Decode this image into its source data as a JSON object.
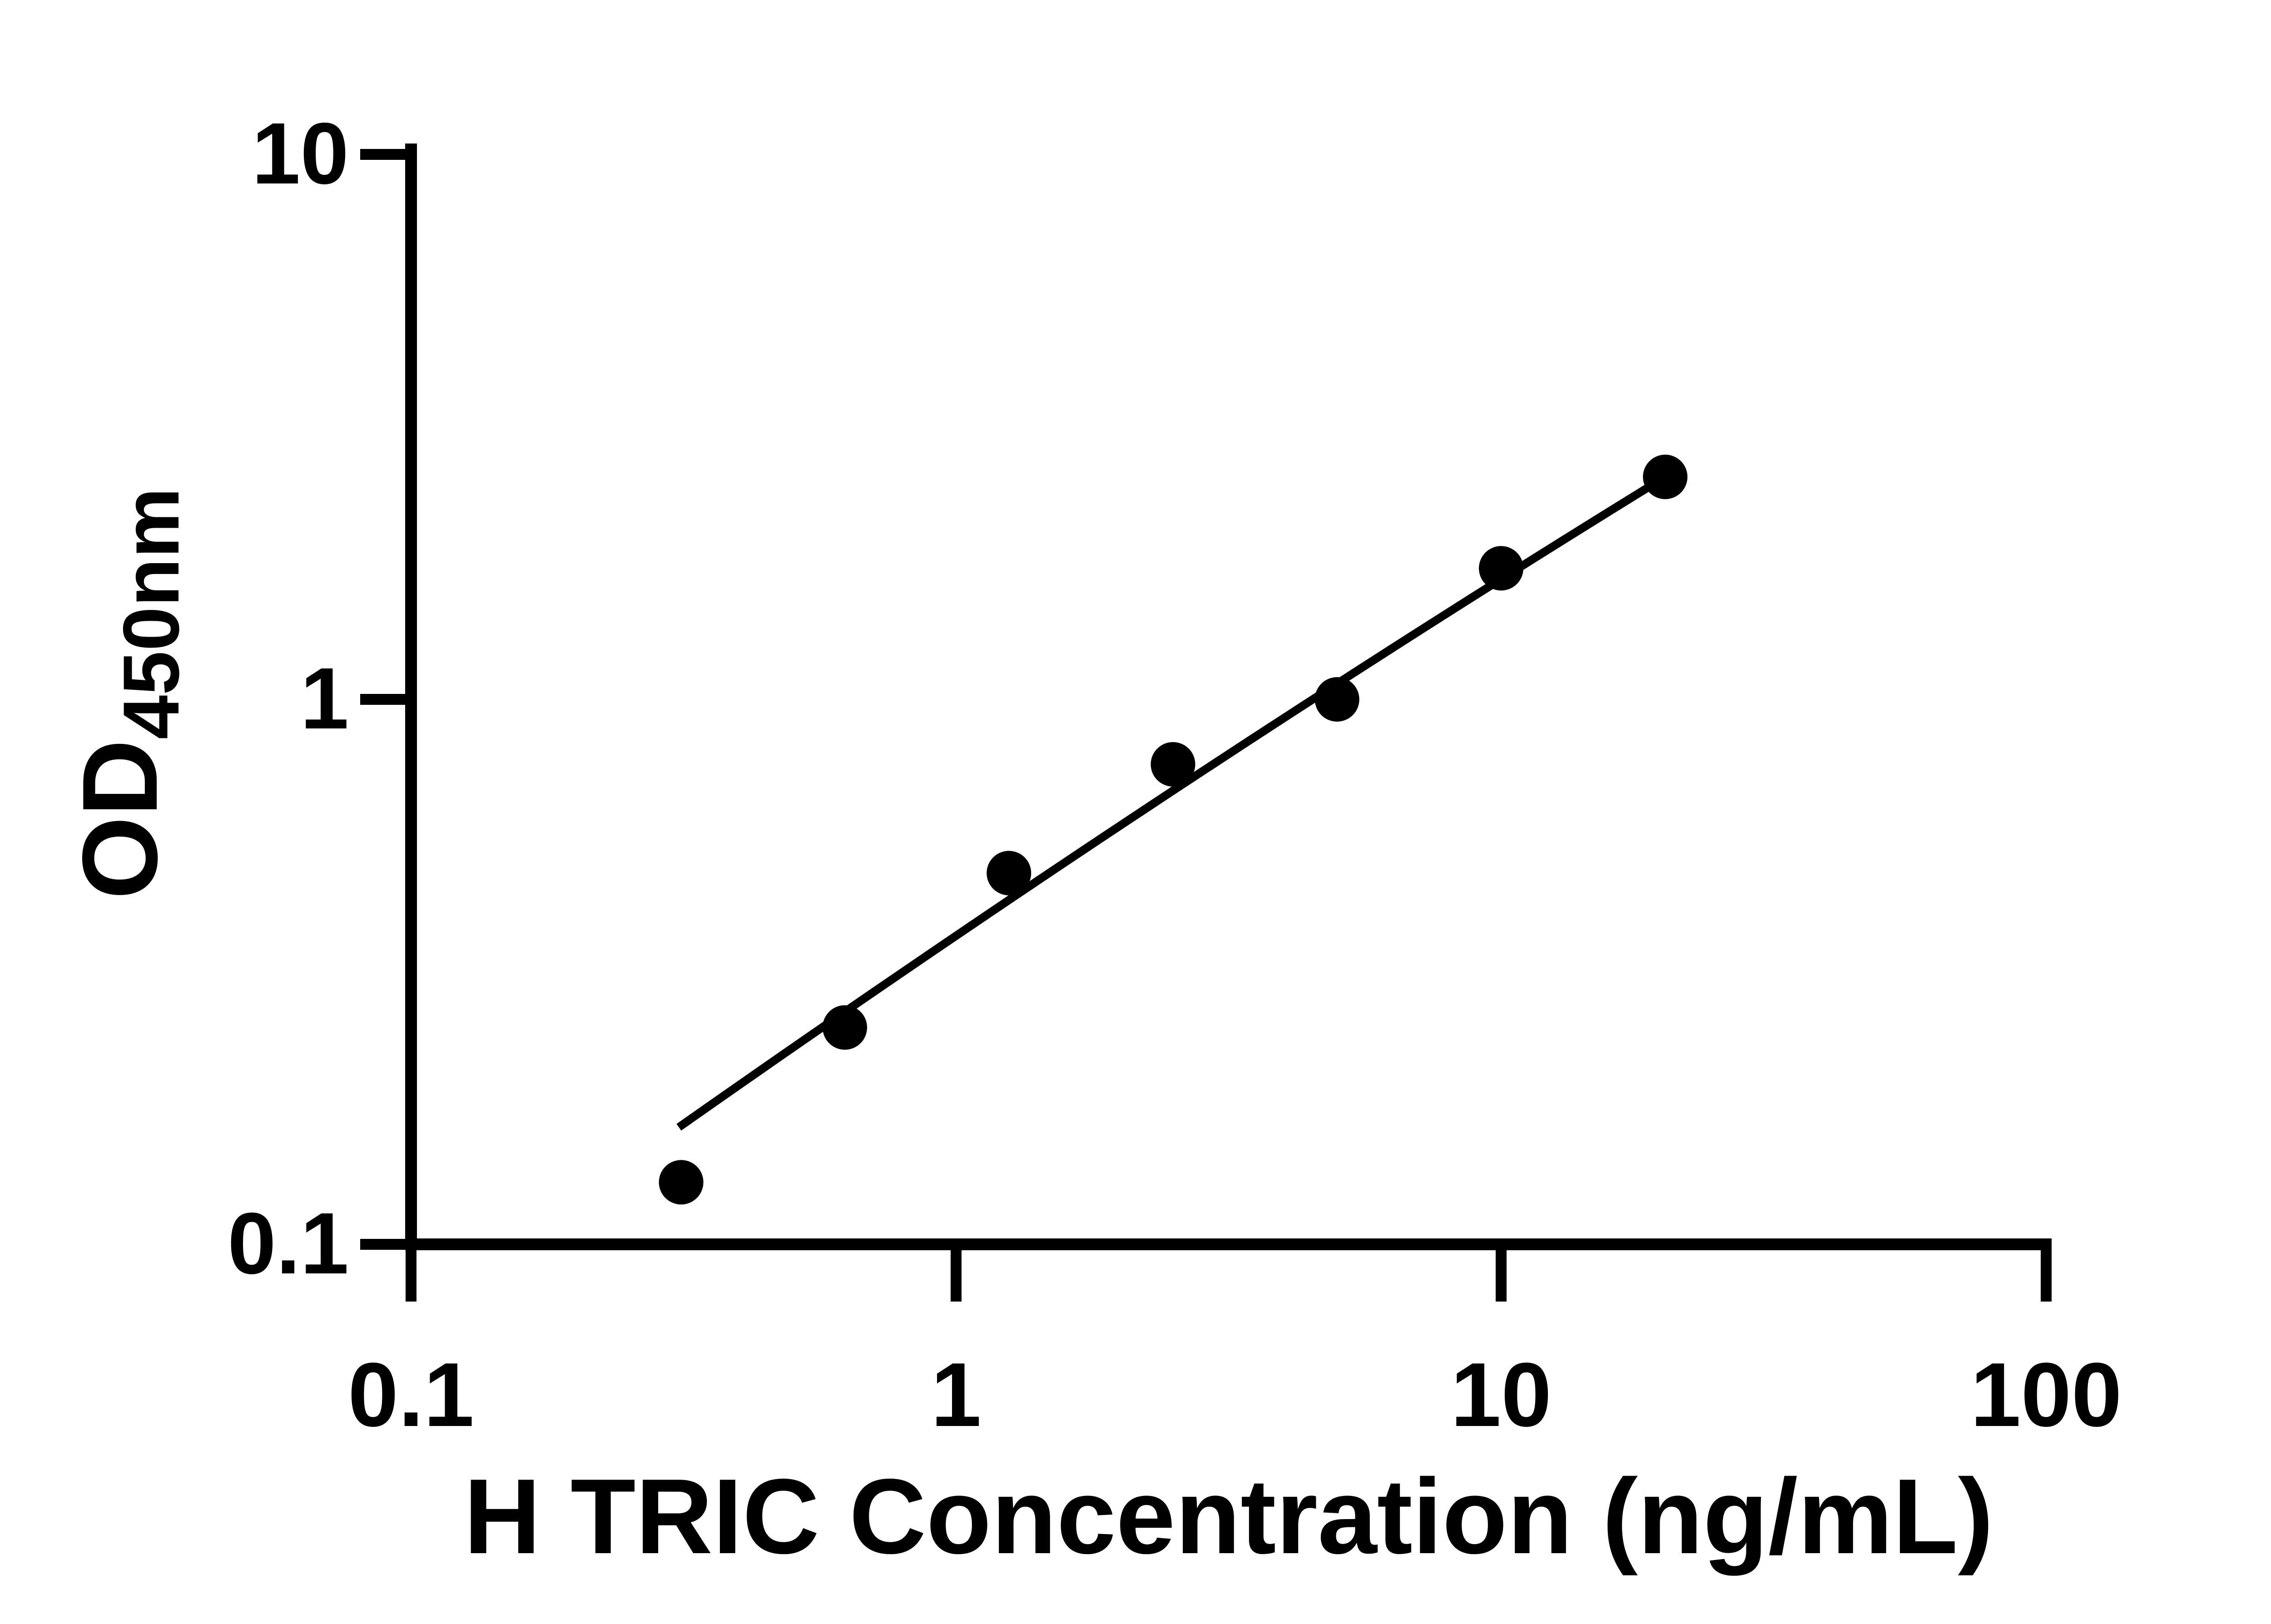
{
  "figure": {
    "background_color": "#ffffff",
    "foreground_color": "#000000",
    "description": "ELISA standard curve, log-log scatter plot with fitted line"
  },
  "chart_data": {
    "type": "scatter",
    "title": "",
    "xlabel": "H TRIC Concentration (ng/mL)",
    "ylabel_main": "OD",
    "ylabel_sub": "450nm",
    "x_scale": "log",
    "y_scale": "log",
    "xlim": [
      0.1,
      100
    ],
    "ylim": [
      0.1,
      10
    ],
    "x_ticks": [
      0.1,
      1,
      10,
      100
    ],
    "x_tick_labels": [
      "0.1",
      "1",
      "10",
      "100"
    ],
    "y_ticks": [
      0.1,
      1,
      10
    ],
    "y_tick_labels": [
      "0.1",
      "1",
      "10"
    ],
    "grid": "off",
    "legend": "none",
    "marker_color": "#000000",
    "line_color": "#000000",
    "series": [
      {
        "name": "standard-curve-points",
        "points": [
          {
            "x": 0.313,
            "y": 0.13
          },
          {
            "x": 0.625,
            "y": 0.25
          },
          {
            "x": 1.25,
            "y": 0.48
          },
          {
            "x": 2.5,
            "y": 0.76
          },
          {
            "x": 5,
            "y": 1.0
          },
          {
            "x": 10,
            "y": 1.74
          },
          {
            "x": 20,
            "y": 2.56
          }
        ]
      }
    ],
    "trend_line": {
      "points": [
        {
          "x": 0.31,
          "y": 0.164
        },
        {
          "x": 2.5,
          "y": 0.68
        },
        {
          "x": 20,
          "y": 2.56
        }
      ]
    }
  }
}
